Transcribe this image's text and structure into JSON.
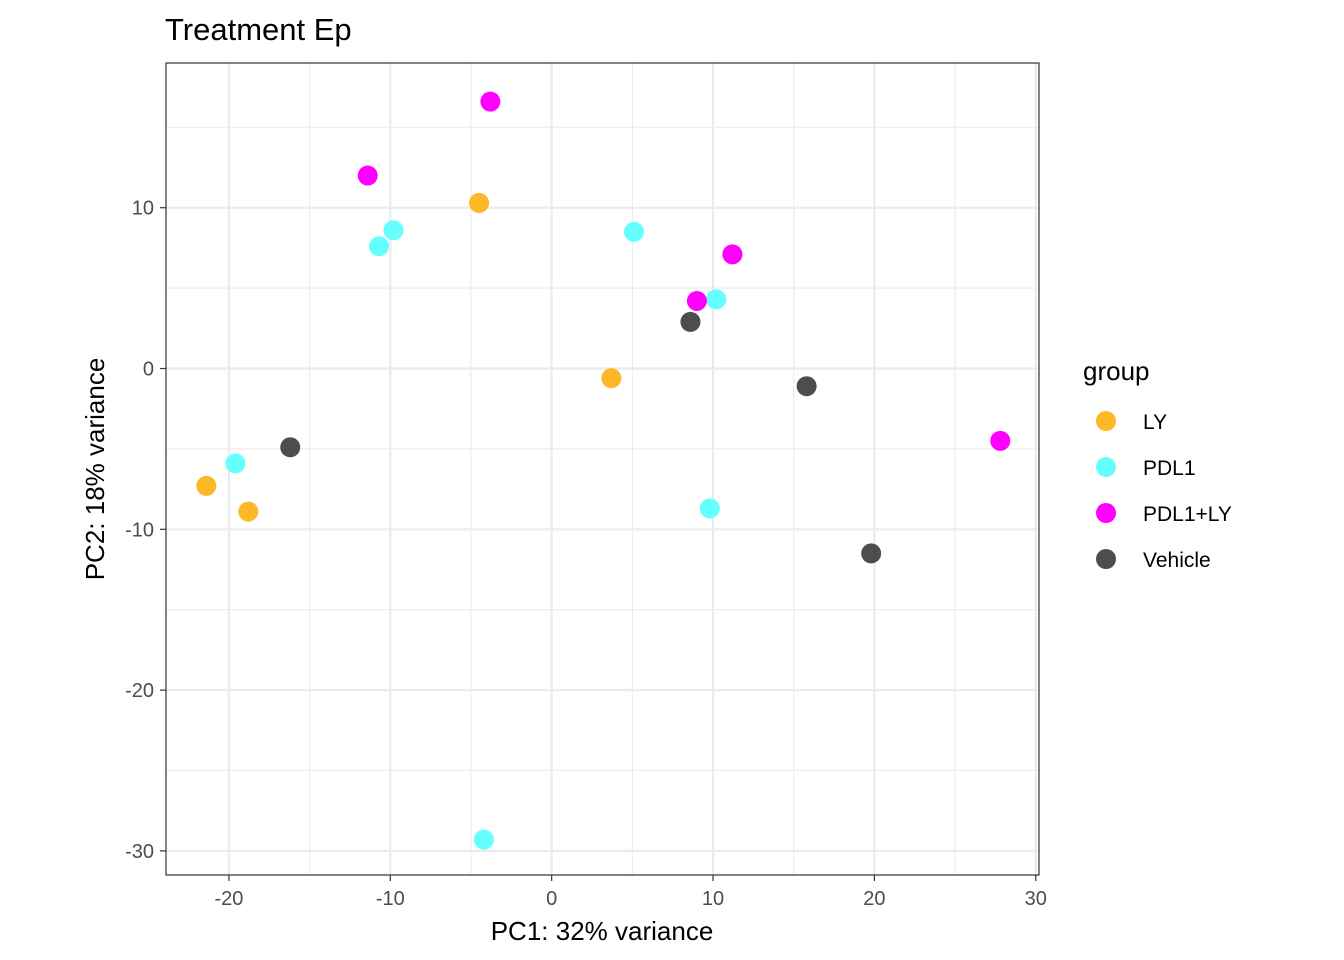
{
  "chart_data": {
    "type": "scatter",
    "title": "Treatment Ep",
    "xlabel": "PC1: 32% variance",
    "ylabel": "PC2: 18% variance",
    "xlim": [
      -23.9,
      30.2
    ],
    "ylim": [
      -31.5,
      19.0
    ],
    "x_ticks": [
      -20,
      -10,
      0,
      10,
      20,
      30
    ],
    "y_ticks": [
      -30,
      -20,
      -10,
      0,
      10
    ],
    "x_tick_labels": [
      "-20",
      "-10",
      "0",
      "10",
      "20",
      "30"
    ],
    "y_tick_labels": [
      "-30",
      "-20",
      "-10",
      "0",
      "10"
    ],
    "grid": true,
    "legend": {
      "title": "group",
      "placement": "right"
    },
    "series": [
      {
        "name": "LY",
        "color": "#FDB827",
        "points": [
          {
            "x": -4.5,
            "y": 10.3
          },
          {
            "x": 3.7,
            "y": -0.6
          },
          {
            "x": -21.4,
            "y": -7.3
          },
          {
            "x": -18.8,
            "y": -8.9
          }
        ]
      },
      {
        "name": "PDL1",
        "color": "#66FFFF",
        "points": [
          {
            "x": -9.8,
            "y": 8.6
          },
          {
            "x": -10.7,
            "y": 7.6
          },
          {
            "x": 5.1,
            "y": 8.5
          },
          {
            "x": 10.2,
            "y": 4.3
          },
          {
            "x": -19.6,
            "y": -5.9
          },
          {
            "x": 9.8,
            "y": -8.7
          },
          {
            "x": -4.2,
            "y": -29.3
          }
        ]
      },
      {
        "name": "PDL1+LY",
        "color": "#FF00FF",
        "points": [
          {
            "x": -3.8,
            "y": 16.6
          },
          {
            "x": -11.4,
            "y": 12.0
          },
          {
            "x": 11.2,
            "y": 7.1
          },
          {
            "x": 9.0,
            "y": 4.2
          },
          {
            "x": 27.8,
            "y": -4.5
          }
        ]
      },
      {
        "name": "Vehicle",
        "color": "#4D4D4D",
        "points": [
          {
            "x": 8.6,
            "y": 2.9
          },
          {
            "x": 15.8,
            "y": -1.1
          },
          {
            "x": -16.2,
            "y": -4.9
          },
          {
            "x": 19.8,
            "y": -11.5
          }
        ]
      }
    ]
  }
}
